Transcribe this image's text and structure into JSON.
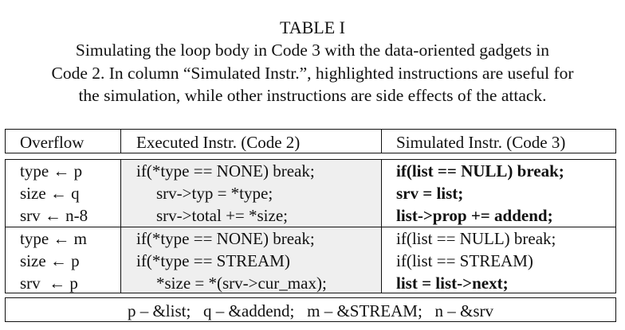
{
  "caption": {
    "title": "TABLE I",
    "lines": [
      "Simulating the loop body in Code 3 with the data-oriented gadgets in",
      "Code 2. In column “Simulated Instr.”, highlighted instructions are useful for",
      "the simulation, while other instructions are side effects of the attack."
    ]
  },
  "table": {
    "headers": [
      "Overflow",
      "Executed Instr. (Code 2)",
      "Simulated Instr. (Code 3)"
    ],
    "groups": [
      {
        "rows": [
          {
            "overflow": "type ← p",
            "executed": "if(*type == NONE) break;",
            "executed_indent": false,
            "simulated": "if(list == NULL) break;",
            "highlighted": true
          },
          {
            "overflow": "size ← q",
            "executed": "srv->typ = *type;",
            "executed_indent": true,
            "simulated": "srv = list;",
            "highlighted": true
          },
          {
            "overflow": "srv ← n-8",
            "executed": "srv->total += *size;",
            "executed_indent": true,
            "simulated": "list->prop += addend;",
            "highlighted": true
          }
        ]
      },
      {
        "rows": [
          {
            "overflow": "type ← m",
            "executed": "if(*type == NONE) break;",
            "executed_indent": false,
            "simulated": "if(list == NULL) break;",
            "highlighted": false
          },
          {
            "overflow": "size ← p",
            "executed": "if(*type == STREAM)",
            "executed_indent": false,
            "simulated": "if(list == STREAM)",
            "highlighted": false
          },
          {
            "overflow": "srv  ← p",
            "executed": "*size = *(srv->cur_max);",
            "executed_indent": true,
            "simulated": "list = list->next;",
            "highlighted": true
          }
        ]
      }
    ],
    "legend": "p – &list;   q – &addend;   m – &STREAM;   n – &srv"
  }
}
